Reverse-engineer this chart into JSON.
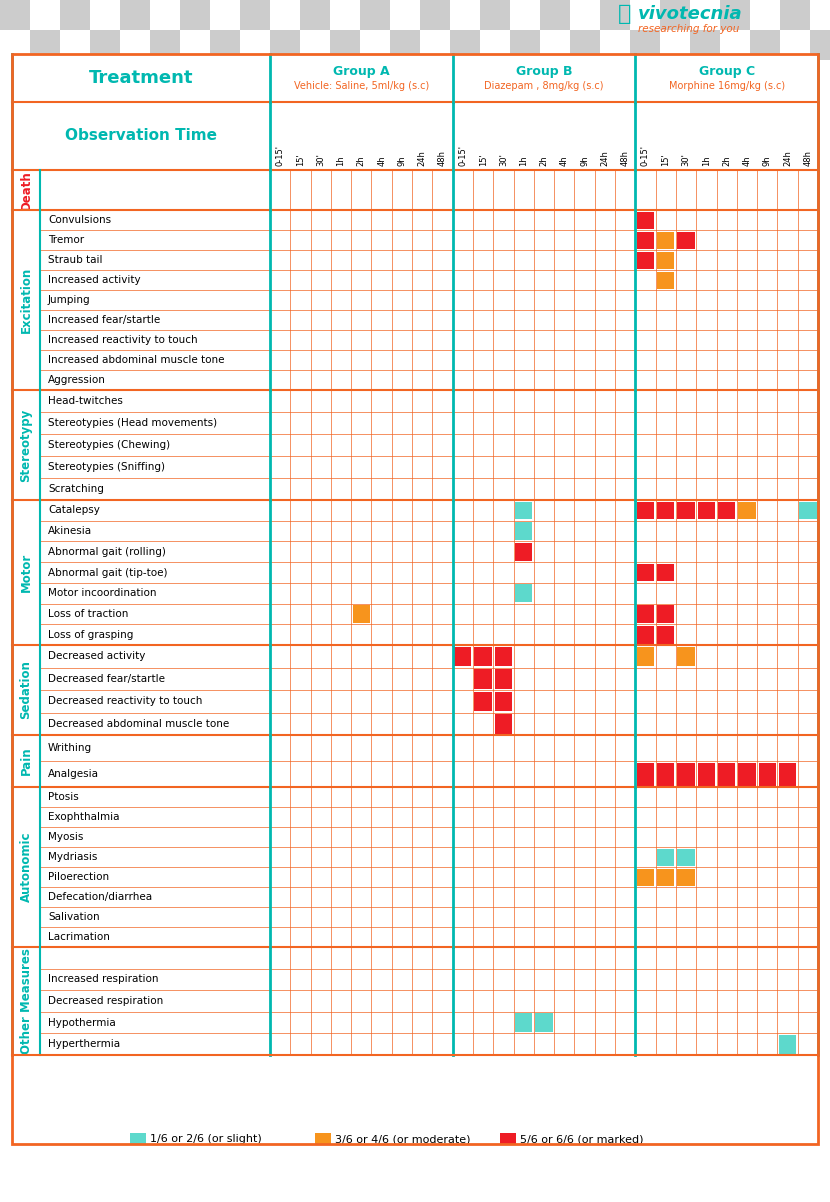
{
  "title_treatment": "Treatment",
  "group_a_label": "Group A",
  "group_a_sub": "Vehicle: Saline, 5ml/kg (s.c)",
  "group_b_label": "Group B",
  "group_b_sub": "Diazepam , 8mg/kg (s.c)",
  "group_c_label": "Group C",
  "group_c_sub": "Morphine 16mg/kg (s.c)",
  "obs_time_label": "Observation Time",
  "time_points": [
    "0-15'",
    "15'",
    "30'",
    "1h",
    "2h",
    "4h",
    "9h",
    "24h",
    "48h"
  ],
  "teal": "#00B8B0",
  "orange": "#F26522",
  "red": "#EE1C25",
  "yellow": "#F7941D",
  "cyan": "#5DD9CC",
  "sections": [
    {
      "name": "Death",
      "label_color": "#EE1C25",
      "rows": [
        ""
      ]
    },
    {
      "name": "Excitation",
      "label_color": "#00B8B0",
      "rows": [
        "Convulsions",
        "Tremor",
        "Straub tail",
        "Increased activity",
        "Jumping",
        "Increased fear/startle",
        "Increased reactivity to touch",
        "Increased abdominal muscle tone",
        "Aggression"
      ]
    },
    {
      "name": "Stereotypy",
      "label_color": "#00B8B0",
      "rows": [
        "Head-twitches",
        "Stereotypies (Head movements)",
        "Stereotypies (Chewing)",
        "Stereotypies (Sniffing)",
        "Scratching"
      ]
    },
    {
      "name": "Motor",
      "label_color": "#00B8B0",
      "rows": [
        "Catalepsy",
        "Akinesia",
        "Abnormal gait (rolling)",
        "Abnormal gait (tip-toe)",
        "Motor incoordination",
        "Loss of traction",
        "Loss of grasping"
      ]
    },
    {
      "name": "Sedation",
      "label_color": "#00B8B0",
      "rows": [
        "Decreased activity",
        "Decreased fear/startle",
        "Decreased reactivity to touch",
        "Decreased abdominal muscle tone"
      ]
    },
    {
      "name": "Pain",
      "label_color": "#00B8B0",
      "rows": [
        "Writhing",
        "Analgesia"
      ]
    },
    {
      "name": "Autonomic",
      "label_color": "#00B8B0",
      "rows": [
        "Ptosis",
        "Exophthalmia",
        "Myosis",
        "Mydriasis",
        "Piloerection",
        "Defecation/diarrhea",
        "Salivation",
        "Lacrimation"
      ]
    },
    {
      "name": "Other Measures",
      "label_color": "#00B8B0",
      "rows": [
        "",
        "Increased respiration",
        "Decreased respiration",
        "Hypothermia",
        "Hyperthermia"
      ]
    }
  ],
  "row_heights": {
    "Death": 40,
    "Excitation": 180,
    "Stereotypy": 110,
    "Motor": 145,
    "Sedation": 90,
    "Pain": 52,
    "Autonomic": 160,
    "Other Measures": 108
  },
  "colored_cells": [
    {
      "section": "Excitation",
      "row": "Convulsions",
      "group": "C",
      "time_idx": 0,
      "color": "red"
    },
    {
      "section": "Excitation",
      "row": "Tremor",
      "group": "C",
      "time_idx": 0,
      "color": "red"
    },
    {
      "section": "Excitation",
      "row": "Tremor",
      "group": "C",
      "time_idx": 1,
      "color": "yellow"
    },
    {
      "section": "Excitation",
      "row": "Tremor",
      "group": "C",
      "time_idx": 2,
      "color": "red"
    },
    {
      "section": "Excitation",
      "row": "Straub tail",
      "group": "C",
      "time_idx": 0,
      "color": "red"
    },
    {
      "section": "Excitation",
      "row": "Straub tail",
      "group": "C",
      "time_idx": 1,
      "color": "yellow"
    },
    {
      "section": "Excitation",
      "row": "Increased activity",
      "group": "C",
      "time_idx": 1,
      "color": "yellow"
    },
    {
      "section": "Motor",
      "row": "Catalepsy",
      "group": "B",
      "time_idx": 3,
      "color": "cyan"
    },
    {
      "section": "Motor",
      "row": "Catalepsy",
      "group": "C",
      "time_idx": 0,
      "color": "red"
    },
    {
      "section": "Motor",
      "row": "Catalepsy",
      "group": "C",
      "time_idx": 1,
      "color": "red"
    },
    {
      "section": "Motor",
      "row": "Catalepsy",
      "group": "C",
      "time_idx": 2,
      "color": "red"
    },
    {
      "section": "Motor",
      "row": "Catalepsy",
      "group": "C",
      "time_idx": 3,
      "color": "red"
    },
    {
      "section": "Motor",
      "row": "Catalepsy",
      "group": "C",
      "time_idx": 4,
      "color": "red"
    },
    {
      "section": "Motor",
      "row": "Catalepsy",
      "group": "C",
      "time_idx": 5,
      "color": "yellow"
    },
    {
      "section": "Motor",
      "row": "Catalepsy",
      "group": "C",
      "time_idx": 8,
      "color": "cyan"
    },
    {
      "section": "Motor",
      "row": "Akinesia",
      "group": "B",
      "time_idx": 3,
      "color": "cyan"
    },
    {
      "section": "Motor",
      "row": "Abnormal gait (rolling)",
      "group": "B",
      "time_idx": 3,
      "color": "red"
    },
    {
      "section": "Motor",
      "row": "Abnormal gait (tip-toe)",
      "group": "C",
      "time_idx": 0,
      "color": "red"
    },
    {
      "section": "Motor",
      "row": "Abnormal gait (tip-toe)",
      "group": "C",
      "time_idx": 1,
      "color": "red"
    },
    {
      "section": "Motor",
      "row": "Motor incoordination",
      "group": "B",
      "time_idx": 3,
      "color": "cyan"
    },
    {
      "section": "Motor",
      "row": "Loss of traction",
      "group": "A",
      "time_idx": 4,
      "color": "yellow"
    },
    {
      "section": "Motor",
      "row": "Loss of traction",
      "group": "C",
      "time_idx": 0,
      "color": "red"
    },
    {
      "section": "Motor",
      "row": "Loss of traction",
      "group": "C",
      "time_idx": 1,
      "color": "red"
    },
    {
      "section": "Motor",
      "row": "Loss of grasping",
      "group": "C",
      "time_idx": 0,
      "color": "red"
    },
    {
      "section": "Motor",
      "row": "Loss of grasping",
      "group": "C",
      "time_idx": 1,
      "color": "red"
    },
    {
      "section": "Sedation",
      "row": "Decreased activity",
      "group": "B",
      "time_idx": 0,
      "color": "red"
    },
    {
      "section": "Sedation",
      "row": "Decreased activity",
      "group": "B",
      "time_idx": 1,
      "color": "red"
    },
    {
      "section": "Sedation",
      "row": "Decreased activity",
      "group": "B",
      "time_idx": 2,
      "color": "red"
    },
    {
      "section": "Sedation",
      "row": "Decreased activity",
      "group": "C",
      "time_idx": 0,
      "color": "yellow"
    },
    {
      "section": "Sedation",
      "row": "Decreased activity",
      "group": "C",
      "time_idx": 2,
      "color": "yellow"
    },
    {
      "section": "Sedation",
      "row": "Decreased fear/startle",
      "group": "B",
      "time_idx": 1,
      "color": "red"
    },
    {
      "section": "Sedation",
      "row": "Decreased fear/startle",
      "group": "B",
      "time_idx": 2,
      "color": "red"
    },
    {
      "section": "Sedation",
      "row": "Decreased reactivity to touch",
      "group": "B",
      "time_idx": 1,
      "color": "red"
    },
    {
      "section": "Sedation",
      "row": "Decreased reactivity to touch",
      "group": "B",
      "time_idx": 2,
      "color": "red"
    },
    {
      "section": "Sedation",
      "row": "Decreased abdominal muscle tone",
      "group": "B",
      "time_idx": 2,
      "color": "red"
    },
    {
      "section": "Pain",
      "row": "Analgesia",
      "group": "C",
      "time_idx": 0,
      "color": "red"
    },
    {
      "section": "Pain",
      "row": "Analgesia",
      "group": "C",
      "time_idx": 1,
      "color": "red"
    },
    {
      "section": "Pain",
      "row": "Analgesia",
      "group": "C",
      "time_idx": 2,
      "color": "red"
    },
    {
      "section": "Pain",
      "row": "Analgesia",
      "group": "C",
      "time_idx": 3,
      "color": "red"
    },
    {
      "section": "Pain",
      "row": "Analgesia",
      "group": "C",
      "time_idx": 4,
      "color": "red"
    },
    {
      "section": "Pain",
      "row": "Analgesia",
      "group": "C",
      "time_idx": 5,
      "color": "red"
    },
    {
      "section": "Pain",
      "row": "Analgesia",
      "group": "C",
      "time_idx": 6,
      "color": "red"
    },
    {
      "section": "Pain",
      "row": "Analgesia",
      "group": "C",
      "time_idx": 7,
      "color": "red"
    },
    {
      "section": "Autonomic",
      "row": "Mydriasis",
      "group": "C",
      "time_idx": 1,
      "color": "cyan"
    },
    {
      "section": "Autonomic",
      "row": "Mydriasis",
      "group": "C",
      "time_idx": 2,
      "color": "cyan"
    },
    {
      "section": "Autonomic",
      "row": "Piloerection",
      "group": "C",
      "time_idx": 0,
      "color": "yellow"
    },
    {
      "section": "Autonomic",
      "row": "Piloerection",
      "group": "C",
      "time_idx": 1,
      "color": "yellow"
    },
    {
      "section": "Autonomic",
      "row": "Piloerection",
      "group": "C",
      "time_idx": 2,
      "color": "yellow"
    },
    {
      "section": "Other Measures",
      "row": "Hypothermia",
      "group": "B",
      "time_idx": 3,
      "color": "cyan"
    },
    {
      "section": "Other Measures",
      "row": "Hypothermia",
      "group": "B",
      "time_idx": 4,
      "color": "cyan"
    },
    {
      "section": "Other Measures",
      "row": "Hyperthermia",
      "group": "C",
      "time_idx": 7,
      "color": "cyan"
    }
  ],
  "legend_items": [
    {
      "label": "1/6 or 2/6 (or slight)",
      "color": "#5DD9CC"
    },
    {
      "label": "3/6 or 4/6 (or moderate)",
      "color": "#F7941D"
    },
    {
      "label": "5/6 or 6/6 (or marked)",
      "color": "#EE1C25"
    }
  ]
}
